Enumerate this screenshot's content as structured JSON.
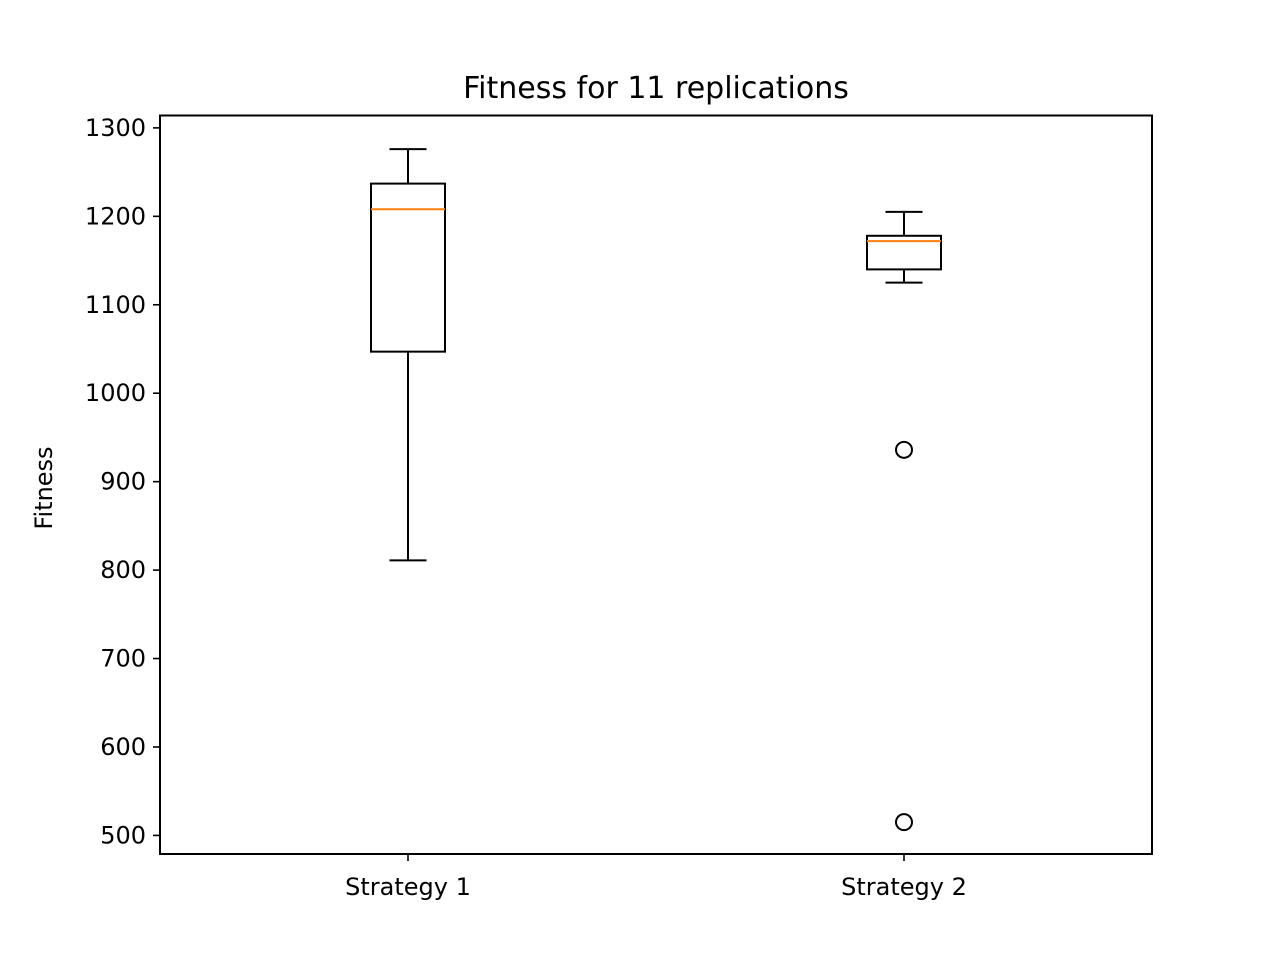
{
  "chart_data": {
    "type": "box",
    "title": "Fitness for 11 replications",
    "xlabel": "",
    "ylabel": "Fitness",
    "categories": [
      "Strategy 1",
      "Strategy 2"
    ],
    "boxes": [
      {
        "category": "Strategy 1",
        "whisker_low": 811,
        "q1": 1047,
        "median": 1208,
        "q3": 1237,
        "whisker_high": 1276,
        "outliers": []
      },
      {
        "category": "Strategy 2",
        "whisker_low": 1125,
        "q1": 1140,
        "median": 1172,
        "q3": 1178,
        "whisker_high": 1205,
        "outliers": [
          936,
          515
        ]
      }
    ],
    "ylim": [
      479,
      1314
    ],
    "yticks": [
      500,
      600,
      700,
      800,
      900,
      1000,
      1100,
      1200,
      1300
    ],
    "grid": false,
    "colors": {
      "box": "#000000",
      "median": "#ff7f0e",
      "outlier_edge": "#000000"
    }
  }
}
